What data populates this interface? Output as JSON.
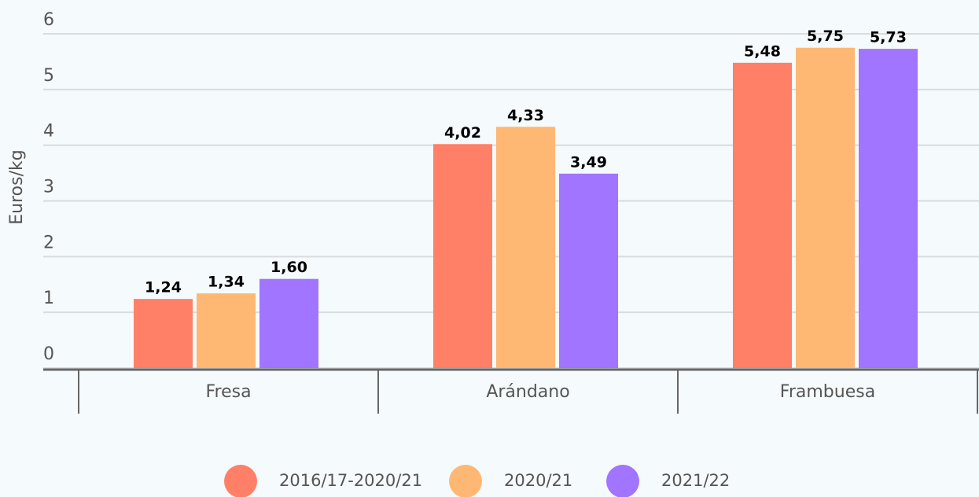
{
  "chart_data": {
    "type": "bar",
    "y_axis_label": "Euros/kg",
    "categories": [
      "Fresa",
      "Arándano",
      "Frambuesa"
    ],
    "series": [
      {
        "name": "2016/17-2020/21",
        "color": "#ff8066",
        "values": [
          1.24,
          4.02,
          5.48
        ],
        "value_labels": [
          "1,24",
          "4,02",
          "5,48"
        ]
      },
      {
        "name": "2020/21",
        "color": "#ffb873",
        "values": [
          1.34,
          4.33,
          5.75
        ],
        "value_labels": [
          "1,34",
          "4,33",
          "5,75"
        ]
      },
      {
        "name": "2021/22",
        "color": "#a175ff",
        "values": [
          1.6,
          3.49,
          5.73
        ],
        "value_labels": [
          "1,60",
          "3,49",
          "5,73"
        ]
      }
    ],
    "ylim": [
      0,
      6
    ],
    "yticks": [
      0,
      1,
      2,
      3,
      4,
      5,
      6
    ],
    "grid": true,
    "legend": "bottom"
  }
}
